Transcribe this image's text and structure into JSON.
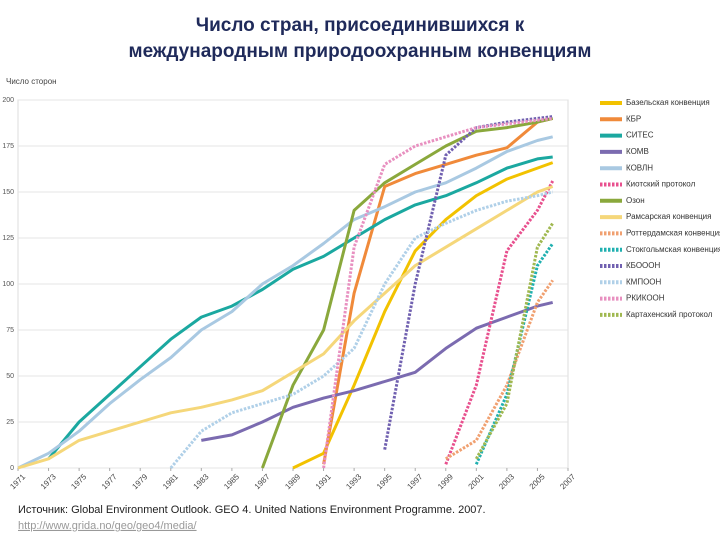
{
  "chart_data": {
    "type": "line",
    "title": "Число стран, присоединившихся к международным природоохранным конвенциям",
    "y_label": "Число сторон",
    "x": [
      1971,
      1973,
      1975,
      1977,
      1979,
      1981,
      1983,
      1985,
      1987,
      1989,
      1991,
      1993,
      1995,
      1997,
      1999,
      2001,
      2003,
      2005,
      2006
    ],
    "xlim": [
      1971,
      2007
    ],
    "xticks": [
      1971,
      1973,
      1975,
      1977,
      1979,
      1981,
      1983,
      1985,
      1987,
      1989,
      1991,
      1993,
      1995,
      1997,
      1999,
      2001,
      2003,
      2005,
      2007
    ],
    "ylim": [
      0,
      200
    ],
    "yticks": [
      0,
      25,
      50,
      75,
      100,
      125,
      150,
      175,
      200
    ],
    "grid": true,
    "legend": "right",
    "series": [
      {
        "name": "Базельская конвенция",
        "color": "#f2c200",
        "dashed": false,
        "values": [
          null,
          null,
          null,
          null,
          null,
          null,
          null,
          null,
          null,
          0,
          8,
          45,
          85,
          118,
          135,
          148,
          157,
          163,
          166
        ]
      },
      {
        "name": "КБР",
        "color": "#f08a3a",
        "dashed": false,
        "values": [
          null,
          null,
          null,
          null,
          null,
          null,
          null,
          null,
          null,
          null,
          2,
          95,
          153,
          160,
          165,
          170,
          174,
          188,
          190
        ]
      },
      {
        "name": "СИТЕС",
        "color": "#1ba8a0",
        "dashed": false,
        "values": [
          null,
          5,
          25,
          40,
          55,
          70,
          82,
          88,
          97,
          108,
          115,
          125,
          135,
          143,
          148,
          155,
          163,
          168,
          169
        ]
      },
      {
        "name": "КОМВ",
        "color": "#7b6bb0",
        "dashed": false,
        "values": [
          null,
          null,
          null,
          null,
          null,
          null,
          15,
          18,
          25,
          33,
          38,
          42,
          47,
          52,
          65,
          76,
          82,
          88,
          90
        ]
      },
      {
        "name": "КОВЛН",
        "color": "#a9c9e2",
        "dashed": false,
        "values": [
          0,
          8,
          20,
          35,
          48,
          60,
          75,
          85,
          100,
          110,
          122,
          135,
          142,
          150,
          155,
          163,
          172,
          178,
          180
        ]
      },
      {
        "name": "Киотский протокол",
        "color": "#e8508e",
        "dashed": true,
        "values": [
          null,
          null,
          null,
          null,
          null,
          null,
          null,
          null,
          null,
          null,
          null,
          null,
          null,
          null,
          2,
          45,
          118,
          140,
          156
        ]
      },
      {
        "name": "Озон",
        "color": "#8aa83c",
        "dashed": false,
        "values": [
          null,
          null,
          null,
          null,
          null,
          null,
          null,
          null,
          0,
          45,
          75,
          140,
          155,
          165,
          175,
          183,
          185,
          188,
          190
        ]
      },
      {
        "name": "Рамсарская конвенция",
        "color": "#f5d77a",
        "dashed": false,
        "values": [
          0,
          5,
          15,
          20,
          25,
          30,
          33,
          37,
          42,
          52,
          62,
          80,
          95,
          110,
          120,
          130,
          140,
          150,
          153
        ]
      },
      {
        "name": "Роттердамская конвенция",
        "color": "#f0a070",
        "dashed": true,
        "values": [
          null,
          null,
          null,
          null,
          null,
          null,
          null,
          null,
          null,
          null,
          null,
          null,
          null,
          null,
          5,
          15,
          45,
          90,
          102
        ]
      },
      {
        "name": "Стокгольмская конвенция",
        "color": "#20b0b0",
        "dashed": true,
        "values": [
          null,
          null,
          null,
          null,
          null,
          null,
          null,
          null,
          null,
          null,
          null,
          null,
          null,
          null,
          null,
          2,
          40,
          110,
          122
        ]
      },
      {
        "name": "КБОООН",
        "color": "#7060b0",
        "dashed": true,
        "values": [
          null,
          null,
          null,
          null,
          null,
          null,
          null,
          null,
          null,
          null,
          null,
          null,
          10,
          100,
          170,
          185,
          188,
          190,
          191
        ]
      },
      {
        "name": "КМПООН",
        "color": "#b0d0e8",
        "dashed": true,
        "values": [
          null,
          null,
          null,
          null,
          null,
          0,
          20,
          30,
          35,
          40,
          50,
          65,
          100,
          125,
          133,
          140,
          145,
          148,
          150
        ]
      },
      {
        "name": "РКИКООН",
        "color": "#e890c0",
        "dashed": true,
        "values": [
          null,
          null,
          null,
          null,
          null,
          null,
          null,
          null,
          null,
          null,
          0,
          120,
          165,
          175,
          180,
          185,
          187,
          189,
          190
        ]
      },
      {
        "name": "Картахенский протокол",
        "color": "#a0b850",
        "dashed": true,
        "values": [
          null,
          null,
          null,
          null,
          null,
          null,
          null,
          null,
          null,
          null,
          null,
          null,
          null,
          null,
          null,
          5,
          35,
          120,
          133
        ]
      }
    ],
    "source": "Источник: Global Environment Outlook. GEO 4. United Nations Environment Programme. 2007.",
    "source_url": "http://www.grida.no/geo/geo4/media/"
  }
}
